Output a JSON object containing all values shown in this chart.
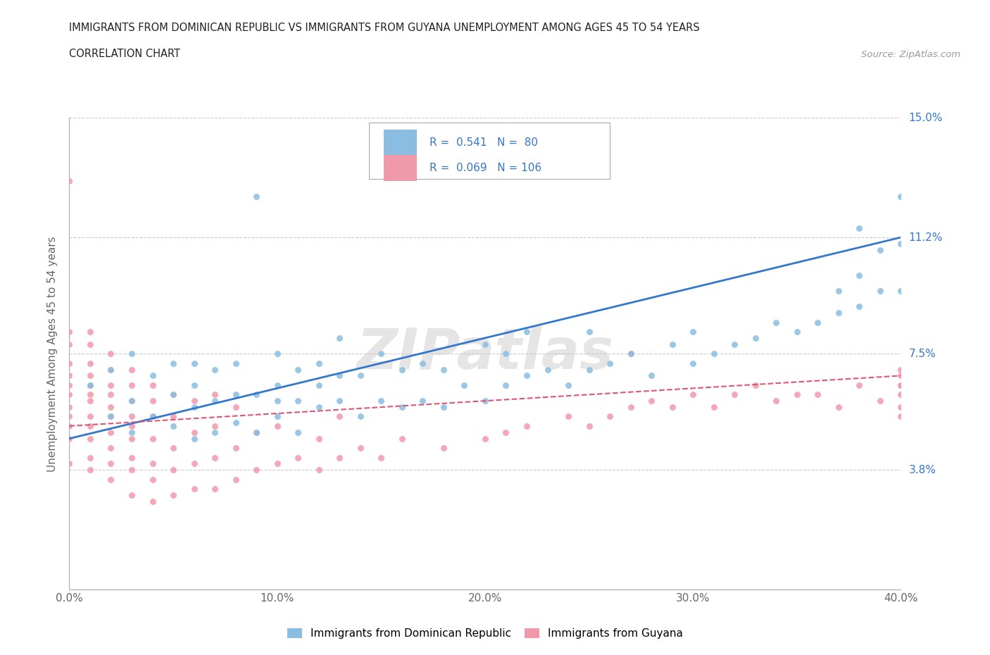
{
  "title_line1": "IMMIGRANTS FROM DOMINICAN REPUBLIC VS IMMIGRANTS FROM GUYANA UNEMPLOYMENT AMONG AGES 45 TO 54 YEARS",
  "title_line2": "CORRELATION CHART",
  "source": "Source: ZipAtlas.com",
  "ylabel": "Unemployment Among Ages 45 to 54 years",
  "xlim": [
    0.0,
    0.4
  ],
  "ylim": [
    0.0,
    0.15
  ],
  "ytick_labels": [
    "",
    "3.8%",
    "7.5%",
    "11.2%",
    "15.0%"
  ],
  "ytick_values": [
    0.0,
    0.038,
    0.075,
    0.112,
    0.15
  ],
  "xtick_labels": [
    "0.0%",
    "10.0%",
    "20.0%",
    "30.0%",
    "40.0%"
  ],
  "xtick_values": [
    0.0,
    0.1,
    0.2,
    0.3,
    0.4
  ],
  "color_blue": "#8bbde0",
  "color_pink": "#f099aa",
  "color_blue_line": "#3377cc",
  "color_pink_line": "#dd5577",
  "watermark": "ZIPatlas",
  "background_color": "#ffffff",
  "dot_size": 45,
  "blue_trend_start": 0.048,
  "blue_trend_end": 0.112,
  "pink_trend_start": 0.052,
  "pink_trend_end": 0.068,
  "blue_x": [
    0.01,
    0.02,
    0.02,
    0.03,
    0.03,
    0.03,
    0.04,
    0.04,
    0.05,
    0.05,
    0.05,
    0.06,
    0.06,
    0.06,
    0.06,
    0.07,
    0.07,
    0.07,
    0.08,
    0.08,
    0.08,
    0.09,
    0.09,
    0.09,
    0.1,
    0.1,
    0.1,
    0.1,
    0.11,
    0.11,
    0.11,
    0.12,
    0.12,
    0.12,
    0.13,
    0.13,
    0.13,
    0.14,
    0.14,
    0.15,
    0.15,
    0.16,
    0.16,
    0.17,
    0.17,
    0.18,
    0.18,
    0.19,
    0.2,
    0.2,
    0.21,
    0.21,
    0.22,
    0.22,
    0.23,
    0.24,
    0.25,
    0.25,
    0.26,
    0.27,
    0.28,
    0.29,
    0.3,
    0.3,
    0.31,
    0.32,
    0.33,
    0.34,
    0.35,
    0.36,
    0.37,
    0.37,
    0.38,
    0.38,
    0.38,
    0.39,
    0.39,
    0.4,
    0.4,
    0.4
  ],
  "blue_y": [
    0.065,
    0.055,
    0.07,
    0.05,
    0.06,
    0.075,
    0.055,
    0.068,
    0.052,
    0.062,
    0.072,
    0.048,
    0.058,
    0.065,
    0.072,
    0.05,
    0.06,
    0.07,
    0.053,
    0.062,
    0.072,
    0.05,
    0.062,
    0.125,
    0.055,
    0.06,
    0.065,
    0.075,
    0.05,
    0.06,
    0.07,
    0.058,
    0.065,
    0.072,
    0.06,
    0.068,
    0.08,
    0.055,
    0.068,
    0.06,
    0.075,
    0.058,
    0.07,
    0.06,
    0.072,
    0.058,
    0.07,
    0.065,
    0.06,
    0.078,
    0.065,
    0.075,
    0.068,
    0.082,
    0.07,
    0.065,
    0.07,
    0.082,
    0.072,
    0.075,
    0.068,
    0.078,
    0.072,
    0.082,
    0.075,
    0.078,
    0.08,
    0.085,
    0.082,
    0.085,
    0.088,
    0.095,
    0.09,
    0.1,
    0.115,
    0.095,
    0.108,
    0.095,
    0.11,
    0.125
  ],
  "pink_x": [
    0.0,
    0.0,
    0.0,
    0.0,
    0.0,
    0.0,
    0.0,
    0.0,
    0.0,
    0.0,
    0.0,
    0.0,
    0.01,
    0.01,
    0.01,
    0.01,
    0.01,
    0.01,
    0.01,
    0.01,
    0.01,
    0.01,
    0.01,
    0.01,
    0.02,
    0.02,
    0.02,
    0.02,
    0.02,
    0.02,
    0.02,
    0.02,
    0.02,
    0.02,
    0.03,
    0.03,
    0.03,
    0.03,
    0.03,
    0.03,
    0.03,
    0.03,
    0.03,
    0.04,
    0.04,
    0.04,
    0.04,
    0.04,
    0.04,
    0.04,
    0.05,
    0.05,
    0.05,
    0.05,
    0.05,
    0.06,
    0.06,
    0.06,
    0.06,
    0.07,
    0.07,
    0.07,
    0.07,
    0.08,
    0.08,
    0.08,
    0.09,
    0.09,
    0.1,
    0.1,
    0.11,
    0.12,
    0.12,
    0.13,
    0.13,
    0.14,
    0.15,
    0.16,
    0.18,
    0.2,
    0.21,
    0.22,
    0.24,
    0.25,
    0.26,
    0.27,
    0.27,
    0.28,
    0.29,
    0.3,
    0.31,
    0.32,
    0.33,
    0.34,
    0.35,
    0.36,
    0.37,
    0.38,
    0.39,
    0.4,
    0.4,
    0.4,
    0.4,
    0.4,
    0.4,
    0.4
  ],
  "pink_y": [
    0.04,
    0.048,
    0.052,
    0.055,
    0.058,
    0.062,
    0.065,
    0.068,
    0.072,
    0.078,
    0.082,
    0.13,
    0.038,
    0.042,
    0.048,
    0.052,
    0.055,
    0.06,
    0.062,
    0.065,
    0.068,
    0.072,
    0.078,
    0.082,
    0.035,
    0.04,
    0.045,
    0.05,
    0.055,
    0.058,
    0.062,
    0.065,
    0.07,
    0.075,
    0.03,
    0.038,
    0.042,
    0.048,
    0.052,
    0.055,
    0.06,
    0.065,
    0.07,
    0.028,
    0.035,
    0.04,
    0.048,
    0.055,
    0.06,
    0.065,
    0.03,
    0.038,
    0.045,
    0.055,
    0.062,
    0.032,
    0.04,
    0.05,
    0.06,
    0.032,
    0.042,
    0.052,
    0.062,
    0.035,
    0.045,
    0.058,
    0.038,
    0.05,
    0.04,
    0.052,
    0.042,
    0.038,
    0.048,
    0.042,
    0.055,
    0.045,
    0.042,
    0.048,
    0.045,
    0.048,
    0.05,
    0.052,
    0.055,
    0.052,
    0.055,
    0.058,
    0.075,
    0.06,
    0.058,
    0.062,
    0.058,
    0.062,
    0.065,
    0.06,
    0.062,
    0.062,
    0.058,
    0.065,
    0.06,
    0.055,
    0.058,
    0.062,
    0.065,
    0.068,
    0.065,
    0.07
  ]
}
